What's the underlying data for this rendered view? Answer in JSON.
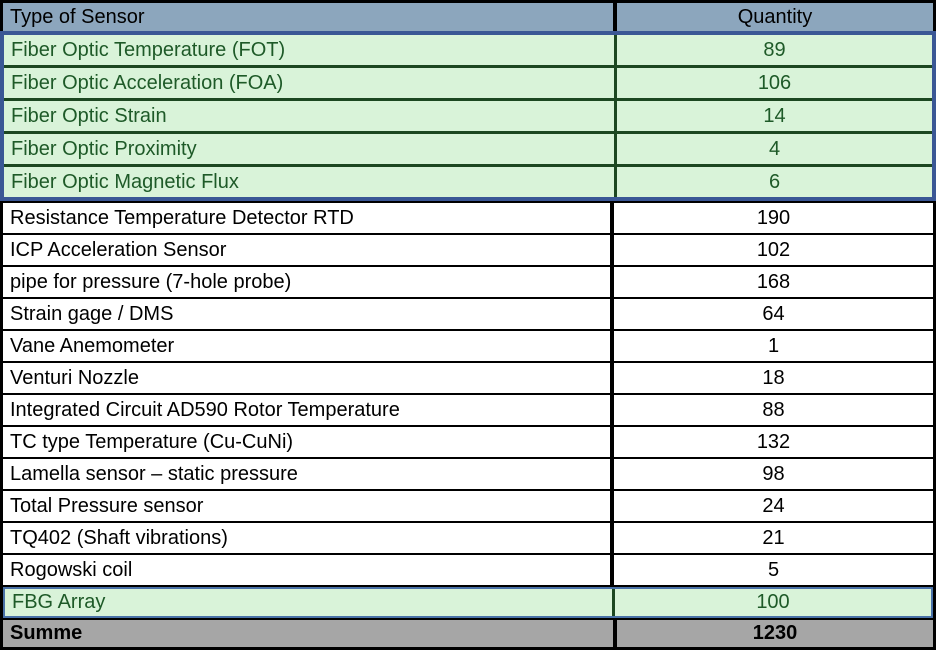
{
  "table": {
    "header": {
      "type_label": "Type of Sensor",
      "qty_label": "Quantity"
    },
    "fiber_rows": [
      {
        "label": "Fiber Optic Temperature (FOT)",
        "qty": "89"
      },
      {
        "label": "Fiber Optic Acceleration (FOA)",
        "qty": "106"
      },
      {
        "label": "Fiber Optic Strain",
        "qty": "14"
      },
      {
        "label": "Fiber Optic Proximity",
        "qty": "4"
      },
      {
        "label": "Fiber Optic Magnetic Flux",
        "qty": "6"
      }
    ],
    "standard_rows": [
      {
        "label": "Resistance Temperature Detector RTD",
        "qty": "190"
      },
      {
        "label": "ICP Acceleration Sensor",
        "qty": "102"
      },
      {
        "label": "pipe for pressure (7-hole probe)",
        "qty": "168"
      },
      {
        "label": "Strain gage / DMS",
        "qty": "64"
      },
      {
        "label": "Vane Anemometer",
        "qty": "1"
      },
      {
        "label": "Venturi Nozzle",
        "qty": "18"
      },
      {
        "label": "Integrated Circuit AD590 Rotor Temperature",
        "qty": "88"
      },
      {
        "label": "TC type Temperature (Cu-CuNi)",
        "qty": "132"
      },
      {
        "label": "Lamella sensor – static pressure",
        "qty": "98"
      },
      {
        "label": "Total Pressure sensor",
        "qty": "24"
      },
      {
        "label": "TQ402 (Shaft vibrations)",
        "qty": "21"
      },
      {
        "label": "Rogowski coil",
        "qty": "5"
      }
    ],
    "fbg_row": {
      "label": "FBG Array",
      "qty": "100"
    },
    "summe_row": {
      "label": "Summe",
      "qty": "1230"
    }
  },
  "colors": {
    "header_bg": "#8CA6BD",
    "green_bg": "#D9F3D9",
    "green_text": "#1E5A28",
    "green_border": "#1C4721",
    "blue_border": "#3A5795",
    "fbg_border": "#4A72A8",
    "summe_bg": "#A6A6A6"
  },
  "chart_data": {
    "type": "table",
    "columns": [
      "Type of Sensor",
      "Quantity"
    ],
    "rows": [
      [
        "Fiber Optic Temperature (FOT)",
        89
      ],
      [
        "Fiber Optic Acceleration (FOA)",
        106
      ],
      [
        "Fiber Optic Strain",
        14
      ],
      [
        "Fiber Optic Proximity",
        4
      ],
      [
        "Fiber Optic Magnetic Flux",
        6
      ],
      [
        "Resistance Temperature Detector RTD",
        190
      ],
      [
        "ICP Acceleration Sensor",
        102
      ],
      [
        "pipe for pressure (7-hole probe)",
        168
      ],
      [
        "Strain gage / DMS",
        64
      ],
      [
        "Vane Anemometer",
        1
      ],
      [
        "Venturi Nozzle",
        18
      ],
      [
        "Integrated Circuit AD590 Rotor Temperature",
        88
      ],
      [
        "TC type Temperature (Cu-CuNi)",
        132
      ],
      [
        "Lamella sensor – static pressure",
        98
      ],
      [
        "Total Pressure sensor",
        24
      ],
      [
        "TQ402 (Shaft vibrations)",
        21
      ],
      [
        "Rogowski coil",
        5
      ],
      [
        "FBG Array",
        100
      ],
      [
        "Summe",
        1230
      ]
    ],
    "highlighted_green_rows": [
      0,
      1,
      2,
      3,
      4,
      17
    ]
  }
}
